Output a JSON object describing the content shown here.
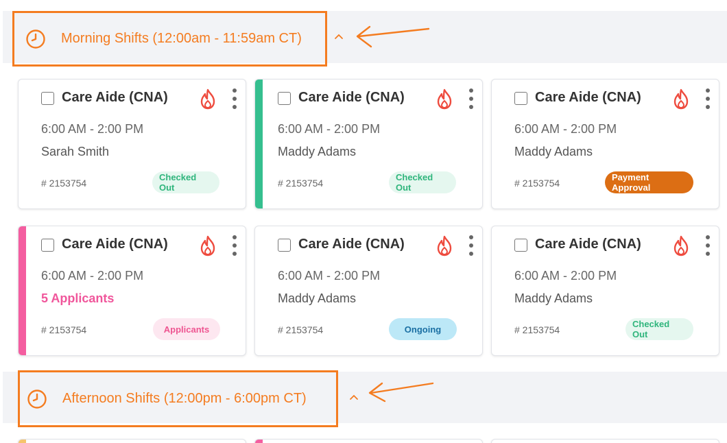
{
  "sections": [
    {
      "title": "Morning Shifts (12:00am - 11:59am CT)",
      "icon": "clock-icon"
    },
    {
      "title": "Afternoon Shifts (12:00pm - 6:00pm CT)",
      "icon": "clock-icon"
    }
  ],
  "colors": {
    "accent_orange": "#f47c20",
    "flame": "#ee4b3e",
    "accent_green": "#35bf8f",
    "accent_pink": "#f45ea0",
    "accent_yellow": "#f6c46b"
  },
  "cards": [
    {
      "role": "Care Aide (CNA)",
      "time": "6:00 AM - 2:00 PM",
      "person": "Sarah Smith",
      "id": "# 2153754",
      "status": "Checked Out",
      "status_type": "checked-out",
      "accent": ""
    },
    {
      "role": "Care Aide (CNA)",
      "time": "6:00 AM - 2:00 PM",
      "person": "Maddy Adams",
      "id": "# 2153754",
      "status": "Checked Out",
      "status_type": "checked-out",
      "accent": "#35bf8f"
    },
    {
      "role": "Care Aide (CNA)",
      "time": "6:00 AM - 2:00 PM",
      "person": "Maddy Adams",
      "id": "# 2153754",
      "status": "Payment Approval",
      "status_type": "payment",
      "accent": ""
    },
    {
      "role": "Care Aide (CNA)",
      "time": "6:00 AM - 2:00 PM",
      "person": "5 Applicants",
      "id": "# 2153754",
      "status": "Applicants",
      "status_type": "applicants",
      "accent": "#f45ea0"
    },
    {
      "role": "Care Aide (CNA)",
      "time": "6:00 AM - 2:00 PM",
      "person": "Maddy Adams",
      "id": "# 2153754",
      "status": "Ongoing",
      "status_type": "ongoing",
      "accent": ""
    },
    {
      "role": "Care Aide (CNA)",
      "time": "6:00 AM - 2:00 PM",
      "person": "Maddy Adams",
      "id": "# 2153754",
      "status": "Checked Out",
      "status_type": "checked-out",
      "accent": ""
    }
  ]
}
